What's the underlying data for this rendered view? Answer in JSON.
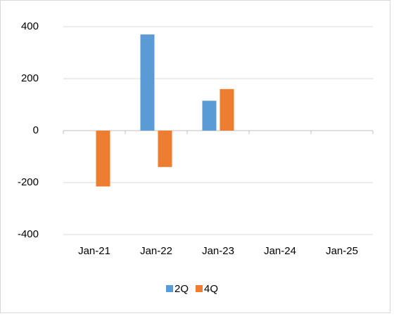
{
  "chart_data": {
    "type": "bar",
    "categories": [
      "Jan-21",
      "Jan-22",
      "Jan-23",
      "Jan-24",
      "Jan-25"
    ],
    "series": [
      {
        "name": "2Q",
        "color": "#5b9bd5",
        "values": [
          null,
          370,
          115,
          null,
          null
        ]
      },
      {
        "name": "4Q",
        "color": "#ed7d31",
        "values": [
          -215,
          -140,
          160,
          null,
          null
        ]
      }
    ],
    "ylim": [
      -400,
      400
    ],
    "yticks": [
      -400,
      -200,
      0,
      200,
      400
    ],
    "negative_tick_color": "#ff0000",
    "grid": true,
    "legend": "bottom"
  }
}
